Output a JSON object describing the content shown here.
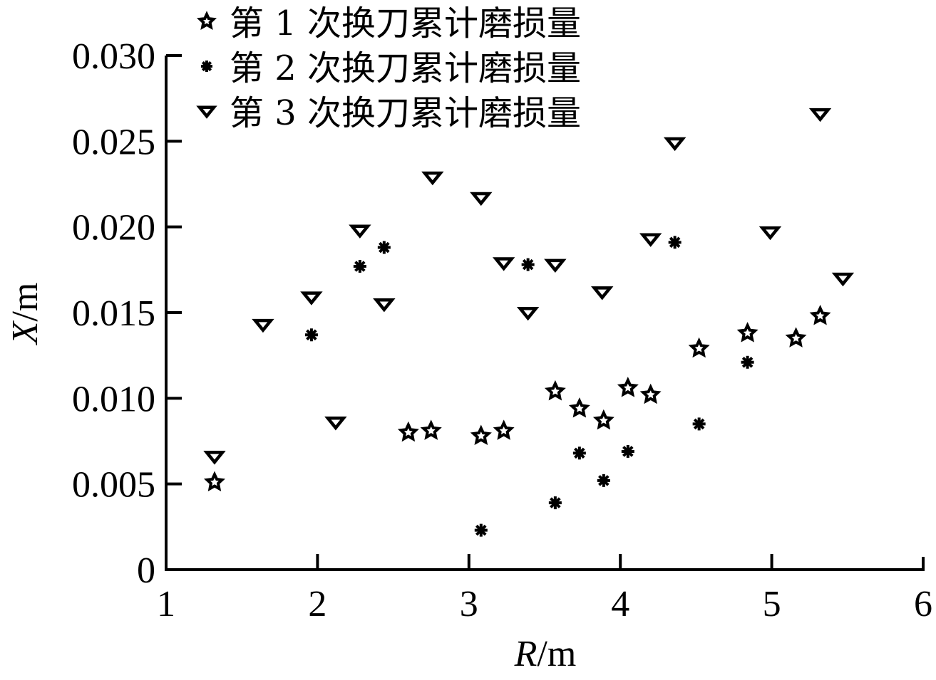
{
  "chart_data": {
    "type": "scatter",
    "title": "",
    "xlabel": "R/m",
    "ylabel": "X/m",
    "xlabel_italic_part": "R",
    "xlabel_unit": "/m",
    "ylabel_italic_part": "X",
    "ylabel_unit": "/m",
    "xlim": [
      1,
      6
    ],
    "ylim": [
      0,
      0.03
    ],
    "x_ticks": [
      "1",
      "2",
      "3",
      "4",
      "5",
      "6"
    ],
    "y_ticks": [
      "0",
      "0.005",
      "0.010",
      "0.015",
      "0.020",
      "0.025",
      "0.030"
    ],
    "grid": false,
    "legend_position": "top-left (inside, above plot)",
    "series": [
      {
        "name": "第 1 次换刀累计磨损量",
        "marker": "star-outline",
        "points": [
          [
            1.32,
            0.0051
          ],
          [
            2.6,
            0.008
          ],
          [
            2.75,
            0.0081
          ],
          [
            3.08,
            0.0078
          ],
          [
            3.23,
            0.0081
          ],
          [
            3.57,
            0.0104
          ],
          [
            3.73,
            0.0094
          ],
          [
            3.89,
            0.0087
          ],
          [
            4.05,
            0.0106
          ],
          [
            4.2,
            0.0102
          ],
          [
            4.52,
            0.0129
          ],
          [
            4.84,
            0.0138
          ],
          [
            5.16,
            0.0135
          ],
          [
            5.32,
            0.0148
          ]
        ]
      },
      {
        "name": "第 2 次换刀累计磨损量",
        "marker": "asterisk",
        "points": [
          [
            1.96,
            0.0137
          ],
          [
            2.28,
            0.0177
          ],
          [
            2.44,
            0.0188
          ],
          [
            3.08,
            0.0023
          ],
          [
            3.39,
            0.0178
          ],
          [
            3.57,
            0.0039
          ],
          [
            3.73,
            0.0068
          ],
          [
            3.89,
            0.0052
          ],
          [
            4.05,
            0.0069
          ],
          [
            4.36,
            0.0191
          ],
          [
            4.52,
            0.0085
          ],
          [
            4.84,
            0.0121
          ]
        ]
      },
      {
        "name": "第 3 次换刀累计磨损量",
        "marker": "triangle-down-outline",
        "points": [
          [
            1.32,
            0.0066
          ],
          [
            1.64,
            0.0143
          ],
          [
            1.96,
            0.0159
          ],
          [
            2.12,
            0.0086
          ],
          [
            2.28,
            0.0198
          ],
          [
            2.44,
            0.0155
          ],
          [
            2.76,
            0.0229
          ],
          [
            3.08,
            0.0217
          ],
          [
            3.23,
            0.0179
          ],
          [
            3.39,
            0.015
          ],
          [
            3.57,
            0.0178
          ],
          [
            3.88,
            0.0162
          ],
          [
            4.2,
            0.0193
          ],
          [
            4.36,
            0.0249
          ],
          [
            4.99,
            0.0197
          ],
          [
            5.32,
            0.0266
          ],
          [
            5.47,
            0.017
          ]
        ]
      }
    ]
  },
  "legend": {
    "items": [
      {
        "label": "第 1 次换刀累计磨损量",
        "icon": "star-icon"
      },
      {
        "label": "第 2 次换刀累计磨损量",
        "icon": "asterisk-icon"
      },
      {
        "label": "第 3 次换刀累计磨损量",
        "icon": "triangle-down-icon"
      }
    ]
  },
  "colors": {
    "ink": "#000000",
    "background": "#ffffff"
  }
}
